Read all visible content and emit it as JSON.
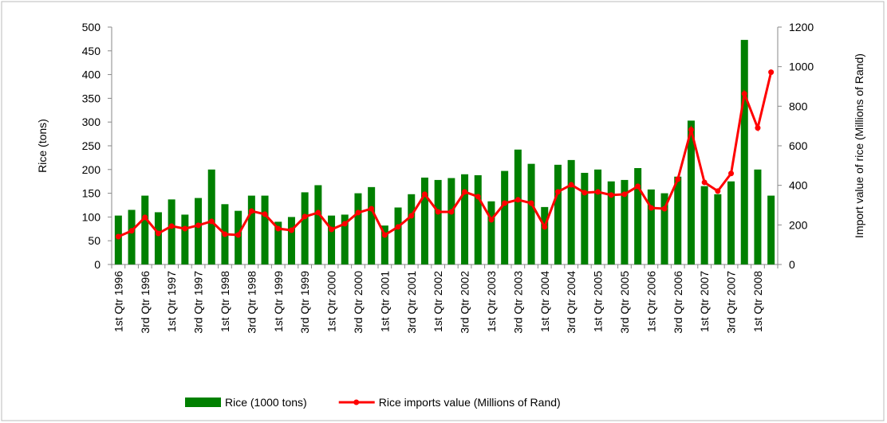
{
  "chart_data": {
    "type": "bar-line",
    "categories": [
      "1st Qtr 1996",
      null,
      "3rd Qtr 1996",
      null,
      "1st Qtr 1997",
      null,
      "3rd Qtr 1997",
      null,
      "1st Qtr 1998",
      null,
      "3rd Qtr 1998",
      null,
      "1st Qtr 1999",
      null,
      "3rd Qtr 1999",
      null,
      "1st Qtr 2000",
      null,
      "3rd Qtr 2000",
      null,
      "1st Qtr 2001",
      null,
      "3rd Qtr 2001",
      null,
      "1st Qtr 2002",
      null,
      "3rd Qtr 2002",
      null,
      "1st Qtr 2003",
      null,
      "3rd Qtr 2003",
      null,
      "1st Qtr 2004",
      null,
      "3rd Qtr 2004",
      null,
      "1st Qtr 2005",
      null,
      "3rd Qtr 2005",
      null,
      "1st Qtr 2006",
      null,
      "3rd Qtr 2006",
      null,
      "1st Qtr 2007",
      null,
      "3rd Qtr 2007",
      null,
      "1st Qtr 2008",
      null
    ],
    "series": [
      {
        "name": "Rice (1000 tons)",
        "type": "bar",
        "color": "#008000",
        "values": [
          103,
          115,
          145,
          110,
          137,
          105,
          140,
          200,
          127,
          113,
          145,
          145,
          90,
          100,
          152,
          167,
          103,
          105,
          150,
          163,
          82,
          120,
          148,
          183,
          178,
          182,
          190,
          188,
          133,
          197,
          242,
          212,
          121,
          210,
          220,
          193,
          200,
          175,
          178,
          203,
          158,
          150,
          185,
          303,
          165,
          148,
          175,
          473,
          200,
          145
        ]
      },
      {
        "name": "Rice imports value (Millions of Rand)",
        "type": "line",
        "axis": "y2",
        "color": "#ff0000",
        "values": [
          141,
          170,
          238,
          157,
          194,
          181,
          198,
          218,
          153,
          149,
          270,
          254,
          181,
          173,
          242,
          262,
          177,
          206,
          262,
          282,
          149,
          190,
          246,
          355,
          266,
          266,
          367,
          343,
          226,
          310,
          327,
          310,
          190,
          367,
          403,
          363,
          367,
          351,
          355,
          395,
          286,
          282,
          431,
          681,
          415,
          371,
          460,
          863,
          690,
          972
        ]
      }
    ],
    "ylabel": "Rice (tons)",
    "y2label": "Import value of rice (Millions of Rand)",
    "ylim": [
      0,
      500
    ],
    "yticks": [
      0,
      50,
      100,
      150,
      200,
      250,
      300,
      350,
      400,
      450,
      500
    ],
    "y2lim": [
      0,
      1200
    ],
    "y2ticks": [
      0,
      200,
      400,
      600,
      800,
      1000,
      1200
    ],
    "legend": "bottom"
  }
}
